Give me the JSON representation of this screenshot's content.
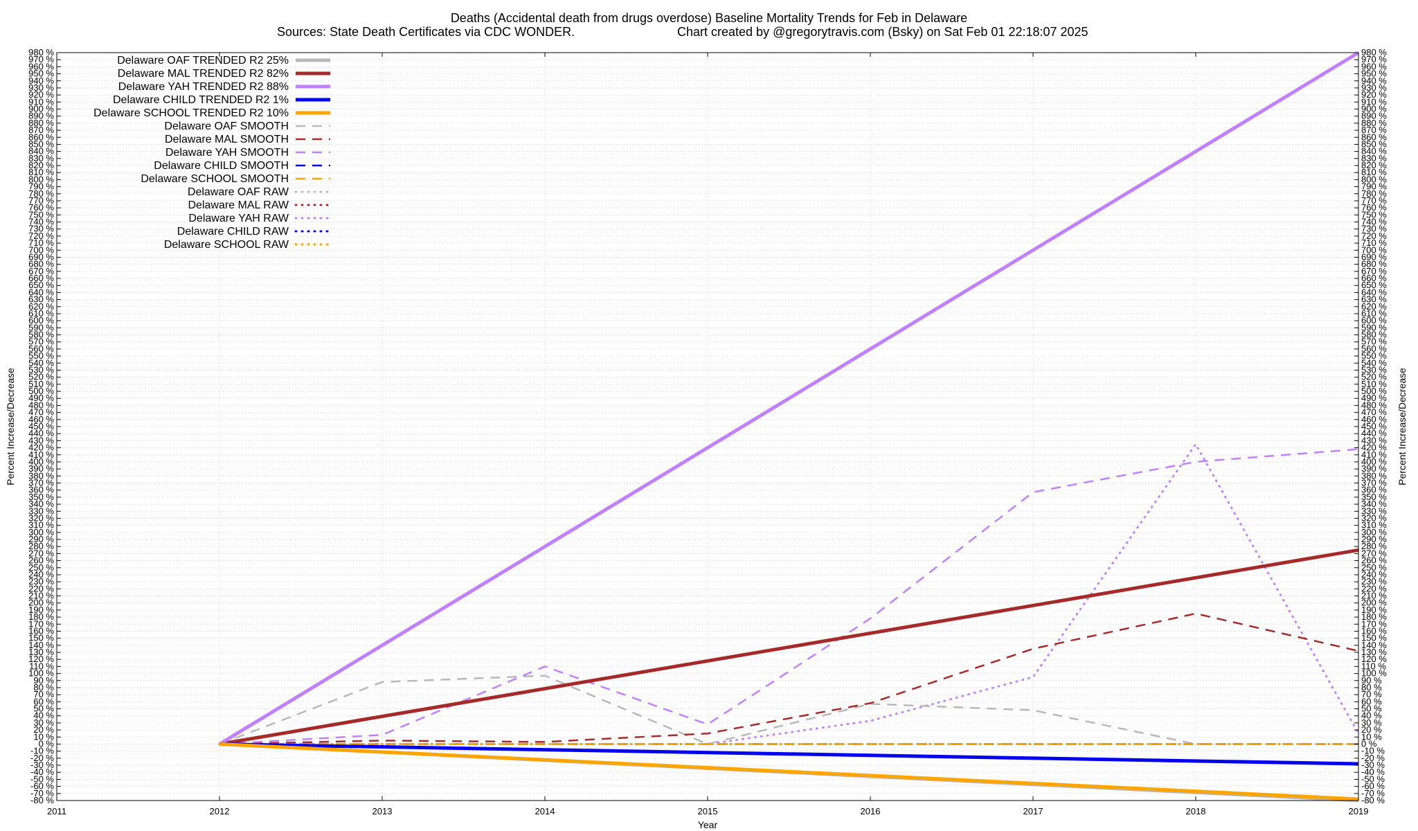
{
  "chart_data": {
    "type": "line",
    "title": "Deaths (Accidental death from drugs overdose)  Baseline Mortality Trends for Feb in Delaware",
    "subtitle_left": "Sources: State Death Certificates via CDC WONDER.",
    "subtitle_right": "Chart created by @gregorytravis.com (Bsky) on Sat Feb 01 22:18:07 2025",
    "xlabel": "Year",
    "ylabel": "Percent Increase/Decrease",
    "xlim": [
      2011,
      2019
    ],
    "ylim": [
      -80,
      980
    ],
    "x_ticks": [
      2011,
      2012,
      2013,
      2014,
      2015,
      2016,
      2017,
      2018,
      2019
    ],
    "y_tick_step": 10,
    "y_tick_suffix": " %",
    "grid": true,
    "legend_position": "top-left",
    "series": [
      {
        "name": "Delaware OAF TRENDED R2  25%",
        "style": "solid",
        "color": "#b8b8b8",
        "points": [
          [
            2012,
            0
          ],
          [
            2019,
            -80
          ]
        ]
      },
      {
        "name": "Delaware MAL TRENDED R2  82%",
        "style": "solid",
        "color": "#a52a2a",
        "points": [
          [
            2012,
            0
          ],
          [
            2019,
            275
          ]
        ]
      },
      {
        "name": "Delaware YAH TRENDED R2  88%",
        "style": "solid",
        "color": "#c080ff",
        "points": [
          [
            2012,
            0
          ],
          [
            2019,
            980
          ]
        ]
      },
      {
        "name": "Delaware CHILD TRENDED R2   1%",
        "style": "solid",
        "color": "#0000ee",
        "points": [
          [
            2012,
            0
          ],
          [
            2019,
            -28
          ]
        ]
      },
      {
        "name": "Delaware SCHOOL TRENDED R2  10%",
        "style": "solid",
        "color": "#ffa500",
        "points": [
          [
            2012,
            0
          ],
          [
            2019,
            -78
          ]
        ]
      },
      {
        "name": "Delaware OAF SMOOTH",
        "style": "dashed",
        "color": "#b8b8b8",
        "points": [
          [
            2012,
            0
          ],
          [
            2013,
            88
          ],
          [
            2014,
            97
          ],
          [
            2015,
            0
          ],
          [
            2016,
            57
          ],
          [
            2017,
            48
          ],
          [
            2018,
            0
          ],
          [
            2019,
            0
          ]
        ]
      },
      {
        "name": "Delaware MAL SMOOTH",
        "style": "dashed",
        "color": "#a52a2a",
        "points": [
          [
            2012,
            0
          ],
          [
            2013,
            5
          ],
          [
            2014,
            3
          ],
          [
            2015,
            15
          ],
          [
            2016,
            58
          ],
          [
            2017,
            135
          ],
          [
            2018,
            185
          ],
          [
            2019,
            132
          ]
        ]
      },
      {
        "name": "Delaware YAH SMOOTH",
        "style": "dashed",
        "color": "#c080ff",
        "points": [
          [
            2012,
            0
          ],
          [
            2013,
            13
          ],
          [
            2014,
            110
          ],
          [
            2015,
            28
          ],
          [
            2016,
            178
          ],
          [
            2017,
            357
          ],
          [
            2018,
            400
          ],
          [
            2019,
            418
          ]
        ]
      },
      {
        "name": "Delaware CHILD SMOOTH",
        "style": "dashed",
        "color": "#0000ee",
        "points": [
          [
            2012,
            0
          ],
          [
            2013,
            0
          ],
          [
            2014,
            0
          ],
          [
            2015,
            0
          ],
          [
            2016,
            0
          ],
          [
            2017,
            0
          ],
          [
            2018,
            0
          ],
          [
            2019,
            0
          ]
        ]
      },
      {
        "name": "Delaware SCHOOL SMOOTH",
        "style": "dashed",
        "color": "#ffa500",
        "points": [
          [
            2012,
            0
          ],
          [
            2013,
            0
          ],
          [
            2014,
            0
          ],
          [
            2015,
            0
          ],
          [
            2016,
            0
          ],
          [
            2017,
            0
          ],
          [
            2018,
            0
          ],
          [
            2019,
            0
          ]
        ]
      },
      {
        "name": "Delaware OAF RAW",
        "style": "dotted",
        "color": "#b8b8b8",
        "points": [
          [
            2012,
            0
          ],
          [
            2013,
            0
          ],
          [
            2014,
            0
          ],
          [
            2015,
            0
          ],
          [
            2016,
            0
          ],
          [
            2017,
            0
          ],
          [
            2018,
            0
          ],
          [
            2019,
            0
          ]
        ]
      },
      {
        "name": "Delaware MAL RAW",
        "style": "dotted",
        "color": "#a52a2a",
        "points": [
          [
            2012,
            0
          ],
          [
            2013,
            0
          ],
          [
            2014,
            0
          ],
          [
            2015,
            0
          ],
          [
            2016,
            0
          ],
          [
            2017,
            0
          ],
          [
            2018,
            0
          ],
          [
            2019,
            0
          ]
        ]
      },
      {
        "name": "Delaware YAH RAW",
        "style": "dotted",
        "color": "#c080ff",
        "points": [
          [
            2012,
            0
          ],
          [
            2013,
            0
          ],
          [
            2014,
            0
          ],
          [
            2015,
            0
          ],
          [
            2016,
            33
          ],
          [
            2017,
            95
          ],
          [
            2018,
            425
          ],
          [
            2019,
            15
          ]
        ]
      },
      {
        "name": "Delaware CHILD RAW",
        "style": "dotted",
        "color": "#0000ee",
        "points": [
          [
            2012,
            0
          ],
          [
            2013,
            0
          ],
          [
            2014,
            0
          ],
          [
            2015,
            0
          ],
          [
            2016,
            0
          ],
          [
            2017,
            0
          ],
          [
            2018,
            0
          ],
          [
            2019,
            0
          ]
        ]
      },
      {
        "name": "Delaware SCHOOL RAW",
        "style": "dotted",
        "color": "#ffa500",
        "points": [
          [
            2012,
            0
          ],
          [
            2013,
            0
          ],
          [
            2014,
            0
          ],
          [
            2015,
            0
          ],
          [
            2016,
            0
          ],
          [
            2017,
            0
          ],
          [
            2018,
            0
          ],
          [
            2019,
            0
          ]
        ]
      }
    ]
  }
}
